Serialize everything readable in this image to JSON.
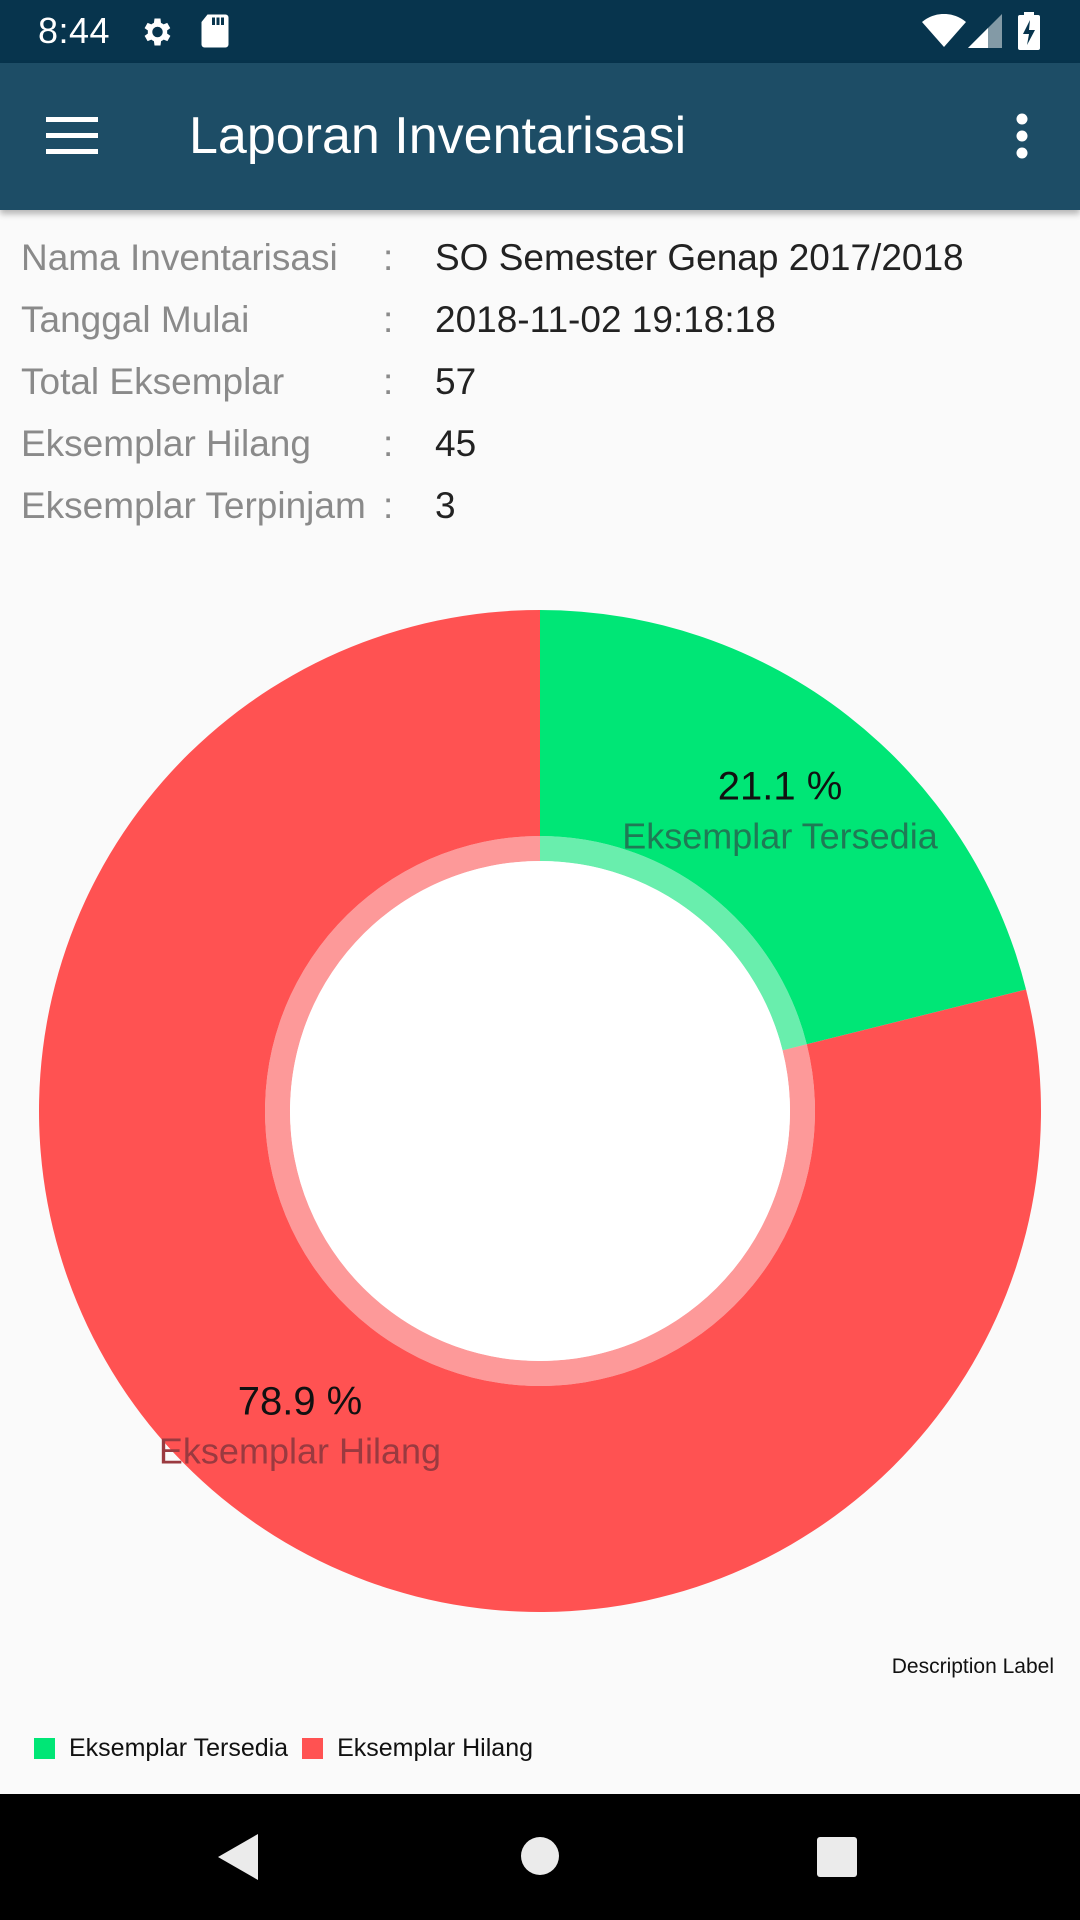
{
  "status_bar": {
    "time": "8:44",
    "icons": [
      "settings-icon",
      "sd-card-icon",
      "wifi-icon",
      "signal-icon",
      "battery-charging-icon"
    ]
  },
  "app_bar": {
    "title": "Laporan Inventarisasi",
    "menu_icon": "hamburger-menu-icon",
    "overflow_icon": "more-vert-icon"
  },
  "info": {
    "rows": [
      {
        "label": "Nama Inventarisasi",
        "colon": ":",
        "value": "SO Semester Genap 2017/2018"
      },
      {
        "label": "Tanggal Mulai",
        "colon": ":",
        "value": "2018-11-02 19:18:18"
      },
      {
        "label": "Total Eksemplar",
        "colon": ":",
        "value": "57"
      },
      {
        "label": "Eksemplar Hilang",
        "colon": ":",
        "value": "45"
      },
      {
        "label": "Eksemplar Terpinjam",
        "colon": ":",
        "value": "3"
      }
    ]
  },
  "chart_data": {
    "type": "pie",
    "variant": "donut",
    "categories": [
      "Eksemplar Tersedia",
      "Eksemplar Hilang"
    ],
    "values": [
      21.1,
      78.9
    ],
    "value_labels": [
      "21.1 %",
      "78.9 %"
    ],
    "colors": [
      "#00e676",
      "#ff5252"
    ],
    "description": "Description Label",
    "legend_position": "bottom-left",
    "legend": [
      "Eksemplar Tersedia",
      "Eksemplar Hilang"
    ]
  },
  "nav_bar": {
    "back_icon": "back-triangle-icon",
    "home_icon": "home-circle-icon",
    "recents_icon": "recents-square-icon"
  },
  "colors": {
    "status_bar": "#07344d",
    "app_bar": "#1d4d66",
    "tersedia": "#00e676",
    "hilang": "#ff5252"
  }
}
